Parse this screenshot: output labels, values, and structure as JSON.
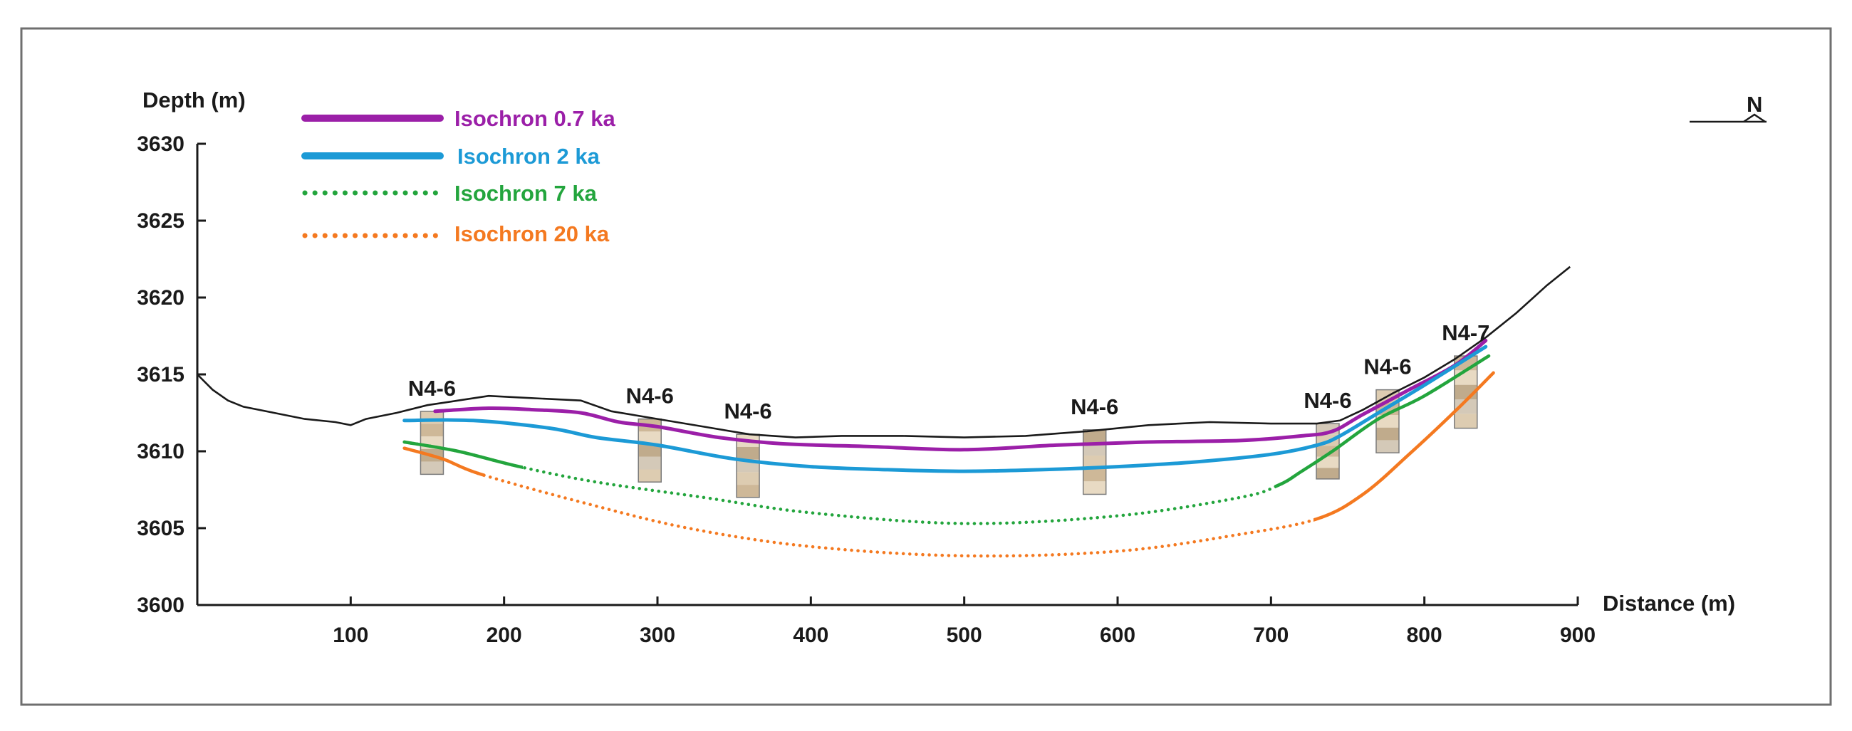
{
  "chart_data": {
    "type": "line",
    "title": "",
    "xlabel": "Distance (m)",
    "ylabel": "Depth (m)",
    "xlim": [
      0,
      900
    ],
    "ylim": [
      3600,
      3630
    ],
    "x_ticks": [
      100,
      200,
      300,
      400,
      500,
      600,
      700,
      800,
      900
    ],
    "y_ticks": [
      3600,
      3605,
      3610,
      3615,
      3620,
      3625,
      3630
    ],
    "north_label": "N",
    "ground_surface": {
      "x": [
        0,
        10,
        20,
        30,
        50,
        70,
        90,
        100,
        110,
        130,
        150,
        170,
        190,
        210,
        230,
        250,
        270,
        300,
        330,
        360,
        390,
        420,
        460,
        500,
        540,
        580,
        620,
        660,
        700,
        730,
        745,
        760,
        780,
        800,
        820,
        840,
        860,
        880,
        895
      ],
      "y": [
        3615,
        3614,
        3613.3,
        3612.9,
        3612.5,
        3612.1,
        3611.9,
        3611.7,
        3612.1,
        3612.5,
        3613,
        3613.3,
        3613.6,
        3613.5,
        3613.4,
        3613.3,
        3612.6,
        3612.1,
        3611.6,
        3611.1,
        3610.9,
        3611,
        3611,
        3610.9,
        3611,
        3611.3,
        3611.7,
        3611.9,
        3611.8,
        3611.8,
        3612,
        3612.7,
        3613.8,
        3614.8,
        3616,
        3617.4,
        3619,
        3620.8,
        3622
      ]
    },
    "series": [
      {
        "name": "Isochron 0.7 ka",
        "color": "#9b1fa8",
        "style": "solid",
        "x": [
          155,
          190,
          220,
          250,
          275,
          300,
          340,
          380,
          440,
          500,
          560,
          620,
          680,
          720,
          740,
          760,
          790,
          820,
          840
        ],
        "y": [
          3612.6,
          3612.8,
          3612.7,
          3612.5,
          3611.9,
          3611.6,
          3610.9,
          3610.5,
          3610.3,
          3610.1,
          3610.4,
          3610.6,
          3610.7,
          3611.0,
          3611.3,
          3612.4,
          3614.0,
          3615.6,
          3617.2
        ]
      },
      {
        "name": "Isochron 2 ka",
        "color": "#1c9ad6",
        "style": "solid",
        "x": [
          135,
          180,
          230,
          260,
          300,
          350,
          400,
          450,
          500,
          550,
          600,
          650,
          700,
          730,
          745,
          770,
          800,
          840
        ],
        "y": [
          3612.0,
          3612.0,
          3611.5,
          3610.9,
          3610.4,
          3609.5,
          3609.0,
          3608.8,
          3608.7,
          3608.8,
          3609.0,
          3609.3,
          3609.8,
          3610.4,
          3611.0,
          3612.5,
          3614.3,
          3616.8
        ]
      },
      {
        "name": "Isochron 7 ka",
        "color": "#23a53d",
        "style": "mixed",
        "x": [
          135,
          170,
          210,
          260,
          330,
          400,
          500,
          600,
          680,
          705,
          720,
          740,
          770,
          800,
          842
        ],
        "y": [
          3610.6,
          3610.0,
          3609.0,
          3608.0,
          3607.0,
          3606.0,
          3605.3,
          3605.8,
          3607.0,
          3607.8,
          3608.7,
          3610.0,
          3612.1,
          3613.6,
          3616.2
        ],
        "solid_x_ranges": [
          [
            135,
            210
          ],
          [
            705,
            842
          ]
        ]
      },
      {
        "name": "Isochron 20 ka",
        "color": "#f47920",
        "style": "mixed",
        "x": [
          135,
          160,
          185,
          250,
          320,
          400,
          500,
          600,
          680,
          730,
          760,
          790,
          820,
          845
        ],
        "y": [
          3610.2,
          3609.5,
          3608.5,
          3606.7,
          3605.0,
          3603.8,
          3603.2,
          3603.5,
          3604.6,
          3605.6,
          3607.2,
          3609.8,
          3612.6,
          3615.1
        ],
        "solid_x_ranges": [
          [
            135,
            185
          ],
          [
            730,
            845
          ]
        ]
      }
    ],
    "cores": [
      {
        "label": "N4-6",
        "x": 153,
        "top": 3612.6,
        "bottom": 3608.5
      },
      {
        "label": "N4-6",
        "x": 295,
        "top": 3612.1,
        "bottom": 3608.0
      },
      {
        "label": "N4-6",
        "x": 359,
        "top": 3611.1,
        "bottom": 3607.0
      },
      {
        "label": "N4-6",
        "x": 585,
        "top": 3611.4,
        "bottom": 3607.2
      },
      {
        "label": "N4-6",
        "x": 737,
        "top": 3611.8,
        "bottom": 3608.2
      },
      {
        "label": "N4-6",
        "x": 776,
        "top": 3614.0,
        "bottom": 3609.9
      },
      {
        "label": "N4-7",
        "x": 827,
        "top": 3616.2,
        "bottom": 3611.5
      }
    ]
  }
}
